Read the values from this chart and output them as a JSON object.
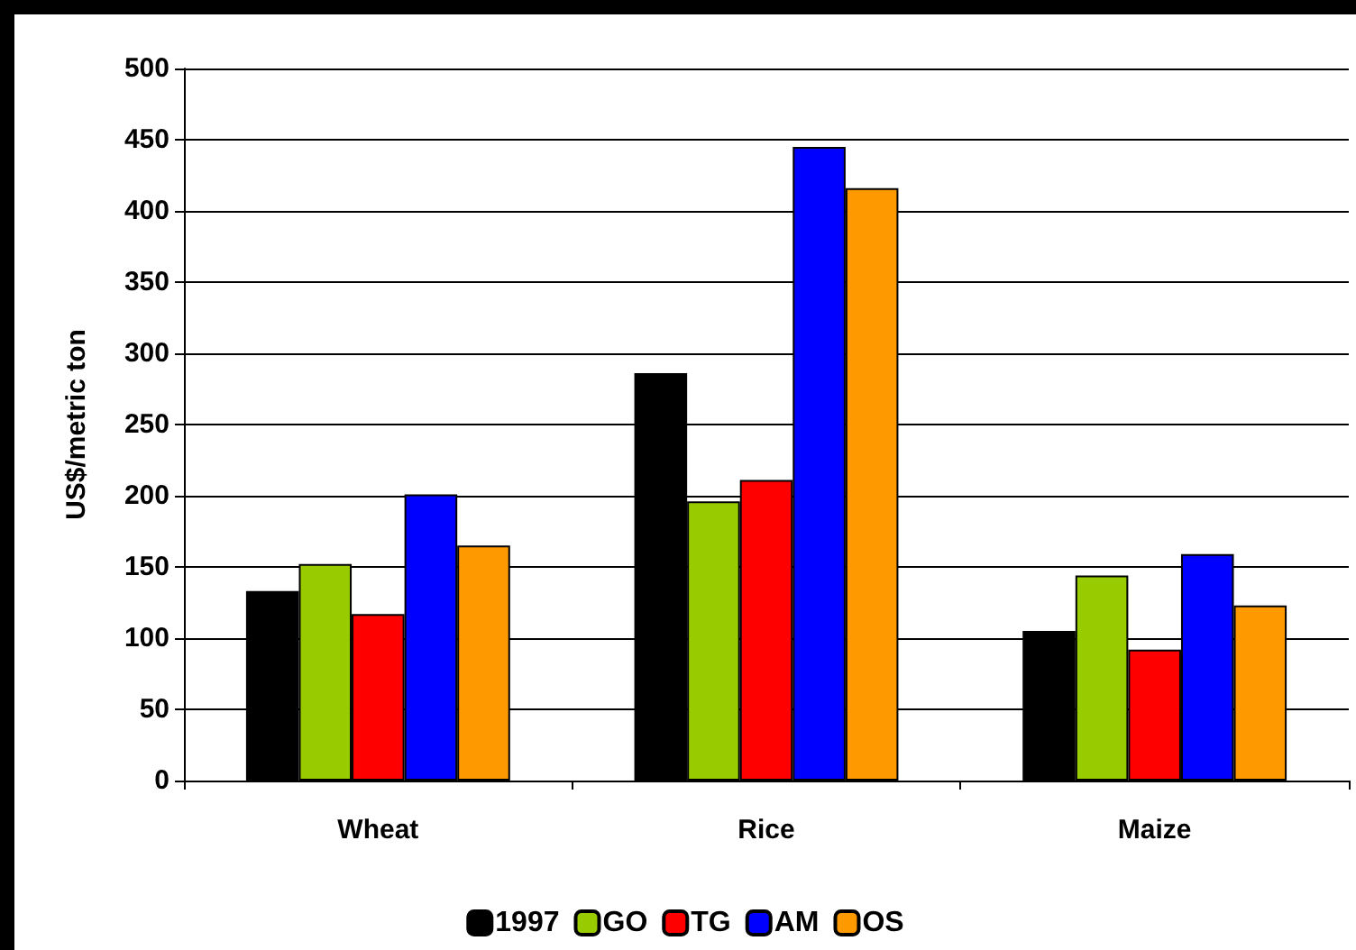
{
  "chart_data": {
    "type": "bar",
    "ylabel": "US$/metric ton",
    "categories": [
      "Wheat",
      "Rice",
      "Maize"
    ],
    "series": [
      {
        "name": "1997",
        "color": "#000000",
        "values": [
          133,
          286,
          105
        ]
      },
      {
        "name": "GO",
        "color": "#99cc00",
        "values": [
          152,
          196,
          144
        ]
      },
      {
        "name": "TG",
        "color": "#ff0000",
        "values": [
          117,
          211,
          92
        ]
      },
      {
        "name": "AM",
        "color": "#0000ff",
        "values": [
          201,
          445,
          159
        ]
      },
      {
        "name": "OS",
        "color": "#ff9900",
        "values": [
          165,
          416,
          123
        ]
      }
    ],
    "ylim": [
      0,
      500
    ],
    "yticks": [
      0,
      50,
      100,
      150,
      200,
      250,
      300,
      350,
      400,
      450,
      500
    ],
    "grid": "y",
    "legend": "bottom"
  }
}
